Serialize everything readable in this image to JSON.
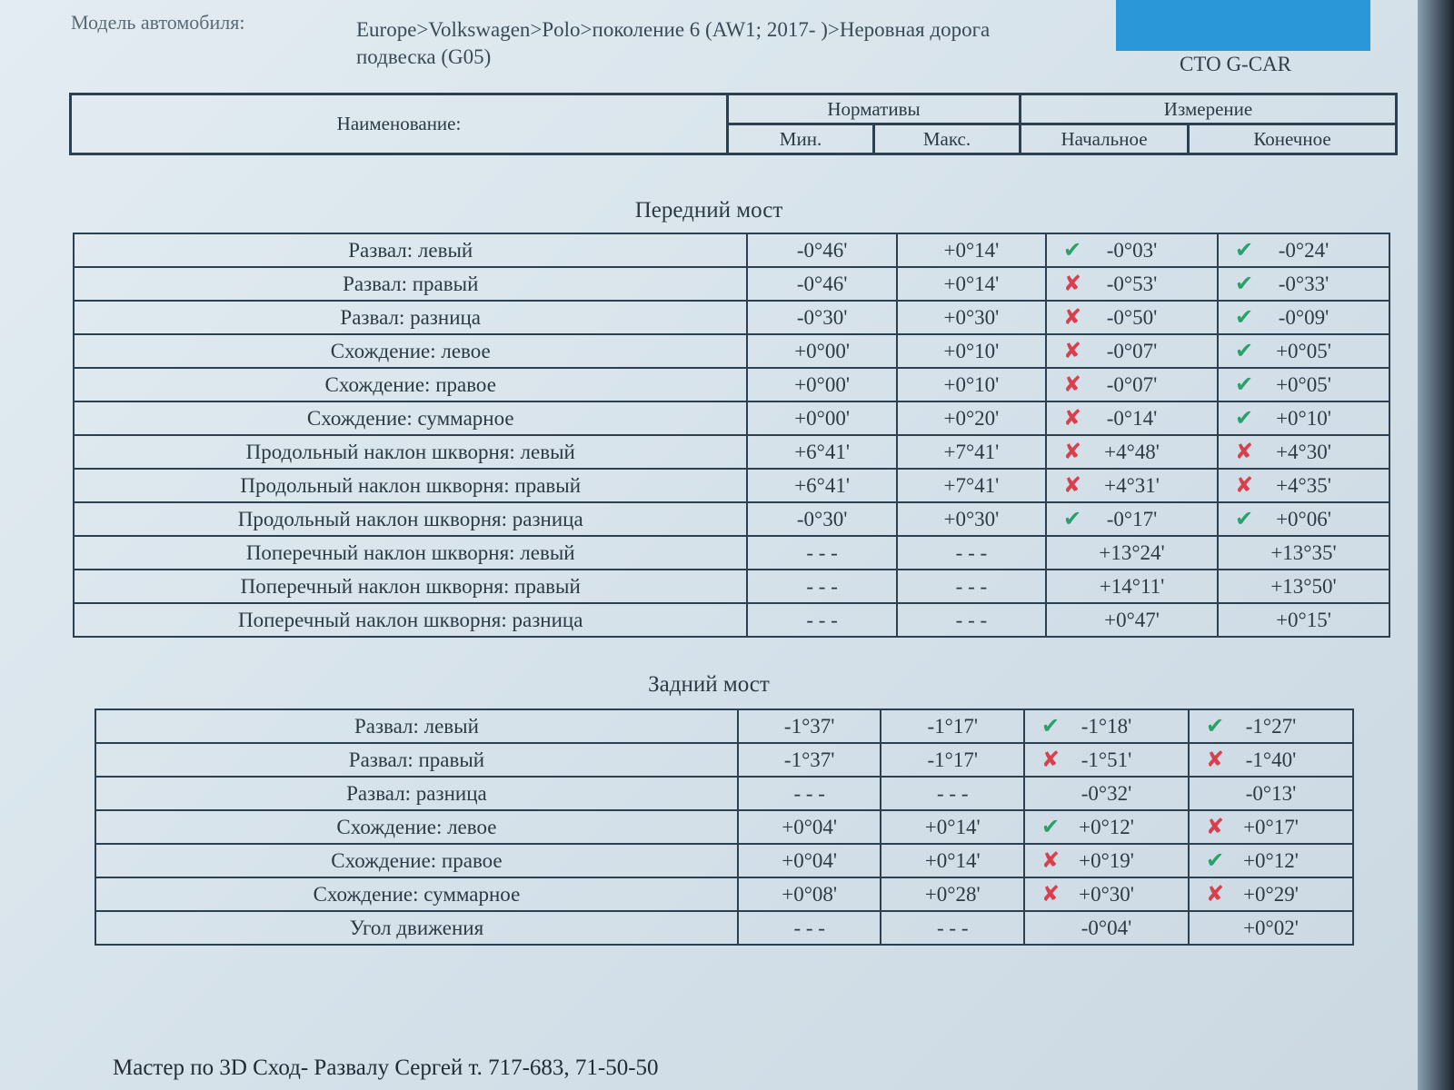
{
  "header": {
    "model_label": "Модель автомобиля:",
    "model_value": "Europe>Volkswagen>Polo>поколение 6 (AW1; 2017- )>Неровная дорога подвеска (G05)",
    "company": "СТО G-CAR"
  },
  "columns": {
    "name": "Наименование:",
    "norms": "Нормативы",
    "measurement": "Измерение",
    "min": "Мин.",
    "max": "Макс.",
    "initial": "Начальное",
    "final": "Конечное"
  },
  "status_colors": {
    "ok": "#2aa06a",
    "fail": "#d8404e"
  },
  "front": {
    "title": "Передний мост",
    "rows": [
      {
        "name": "Развал: левый",
        "min": "-0°46'",
        "max": "+0°14'",
        "initial": {
          "status": "ok",
          "value": "-0°03'"
        },
        "final": {
          "status": "ok",
          "value": "-0°24'"
        }
      },
      {
        "name": "Развал: правый",
        "min": "-0°46'",
        "max": "+0°14'",
        "initial": {
          "status": "fail",
          "value": "-0°53'"
        },
        "final": {
          "status": "ok",
          "value": "-0°33'"
        }
      },
      {
        "name": "Развал: разница",
        "min": "-0°30'",
        "max": "+0°30'",
        "initial": {
          "status": "fail",
          "value": "-0°50'"
        },
        "final": {
          "status": "ok",
          "value": "-0°09'"
        }
      },
      {
        "name": "Схождение: левое",
        "min": "+0°00'",
        "max": "+0°10'",
        "initial": {
          "status": "fail",
          "value": "-0°07'"
        },
        "final": {
          "status": "ok",
          "value": "+0°05'"
        }
      },
      {
        "name": "Схождение: правое",
        "min": "+0°00'",
        "max": "+0°10'",
        "initial": {
          "status": "fail",
          "value": "-0°07'"
        },
        "final": {
          "status": "ok",
          "value": "+0°05'"
        }
      },
      {
        "name": "Схождение: суммарное",
        "min": "+0°00'",
        "max": "+0°20'",
        "initial": {
          "status": "fail",
          "value": "-0°14'"
        },
        "final": {
          "status": "ok",
          "value": "+0°10'"
        }
      },
      {
        "name": "Продольный наклон шкворня: левый",
        "min": "+6°41'",
        "max": "+7°41'",
        "initial": {
          "status": "fail",
          "value": "+4°48'"
        },
        "final": {
          "status": "fail",
          "value": "+4°30'"
        }
      },
      {
        "name": "Продольный наклон шкворня: правый",
        "min": "+6°41'",
        "max": "+7°41'",
        "initial": {
          "status": "fail",
          "value": "+4°31'"
        },
        "final": {
          "status": "fail",
          "value": "+4°35'"
        }
      },
      {
        "name": "Продольный наклон шкворня: разница",
        "min": "-0°30'",
        "max": "+0°30'",
        "initial": {
          "status": "ok",
          "value": "-0°17'"
        },
        "final": {
          "status": "ok",
          "value": "+0°06'"
        }
      },
      {
        "name": "Поперечный наклон шкворня: левый",
        "min": "- - -",
        "max": "- - -",
        "initial": {
          "status": null,
          "value": "+13°24'"
        },
        "final": {
          "status": null,
          "value": "+13°35'"
        }
      },
      {
        "name": "Поперечный наклон шкворня: правый",
        "min": "- - -",
        "max": "- - -",
        "initial": {
          "status": null,
          "value": "+14°11'"
        },
        "final": {
          "status": null,
          "value": "+13°50'"
        }
      },
      {
        "name": "Поперечный наклон шкворня: разница",
        "min": "- - -",
        "max": "- - -",
        "initial": {
          "status": null,
          "value": "+0°47'"
        },
        "final": {
          "status": null,
          "value": "+0°15'"
        }
      }
    ]
  },
  "rear": {
    "title": "Задний мост",
    "rows": [
      {
        "name": "Развал: левый",
        "min": "-1°37'",
        "max": "-1°17'",
        "initial": {
          "status": "ok",
          "value": "-1°18'"
        },
        "final": {
          "status": "ok",
          "value": "-1°27'"
        }
      },
      {
        "name": "Развал: правый",
        "min": "-1°37'",
        "max": "-1°17'",
        "initial": {
          "status": "fail",
          "value": "-1°51'"
        },
        "final": {
          "status": "fail",
          "value": "-1°40'"
        }
      },
      {
        "name": "Развал: разница",
        "min": "- - -",
        "max": "- - -",
        "initial": {
          "status": null,
          "value": "-0°32'"
        },
        "final": {
          "status": null,
          "value": "-0°13'"
        }
      },
      {
        "name": "Схождение: левое",
        "min": "+0°04'",
        "max": "+0°14'",
        "initial": {
          "status": "ok",
          "value": "+0°12'"
        },
        "final": {
          "status": "fail",
          "value": "+0°17'"
        }
      },
      {
        "name": "Схождение: правое",
        "min": "+0°04'",
        "max": "+0°14'",
        "initial": {
          "status": "fail",
          "value": "+0°19'"
        },
        "final": {
          "status": "ok",
          "value": "+0°12'"
        }
      },
      {
        "name": "Схождение: суммарное",
        "min": "+0°08'",
        "max": "+0°28'",
        "initial": {
          "status": "fail",
          "value": "+0°30'"
        },
        "final": {
          "status": "fail",
          "value": "+0°29'"
        }
      },
      {
        "name": "Угол движения",
        "min": "- - -",
        "max": "- - -",
        "initial": {
          "status": null,
          "value": "-0°04'"
        },
        "final": {
          "status": null,
          "value": "+0°02'"
        }
      }
    ]
  },
  "footer": {
    "text": "Мастер по 3D Сход- Развалу Сергей т. 717-683, 71-50-50"
  }
}
